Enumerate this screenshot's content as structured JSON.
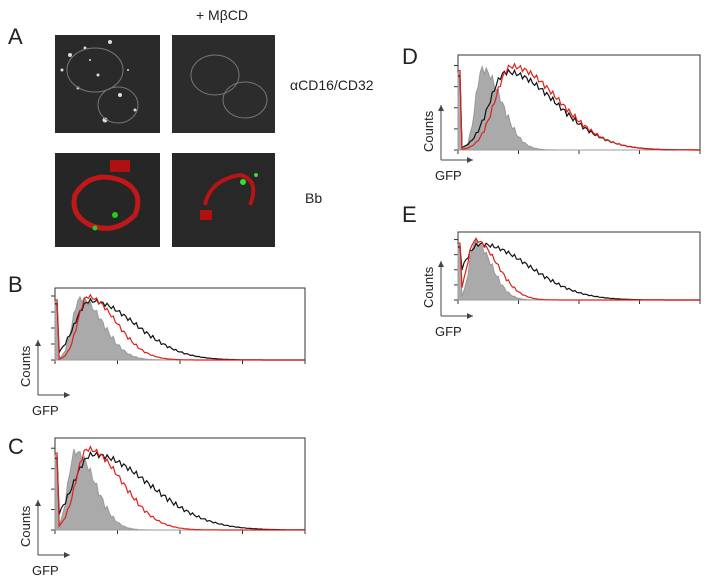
{
  "panel_a": {
    "label": "A",
    "treatment": "+ MβCD",
    "rows": [
      "αCD16/CD32",
      "Bb"
    ]
  },
  "histograms": [
    {
      "label": "B",
      "y_axis": "Counts",
      "x_axis": "GFP"
    },
    {
      "label": "C",
      "y_axis": "Counts",
      "x_axis": "GFP"
    },
    {
      "label": "D",
      "y_axis": "Counts",
      "x_axis": "GFP"
    },
    {
      "label": "E",
      "y_axis": "Counts",
      "x_axis": "GFP"
    }
  ]
}
